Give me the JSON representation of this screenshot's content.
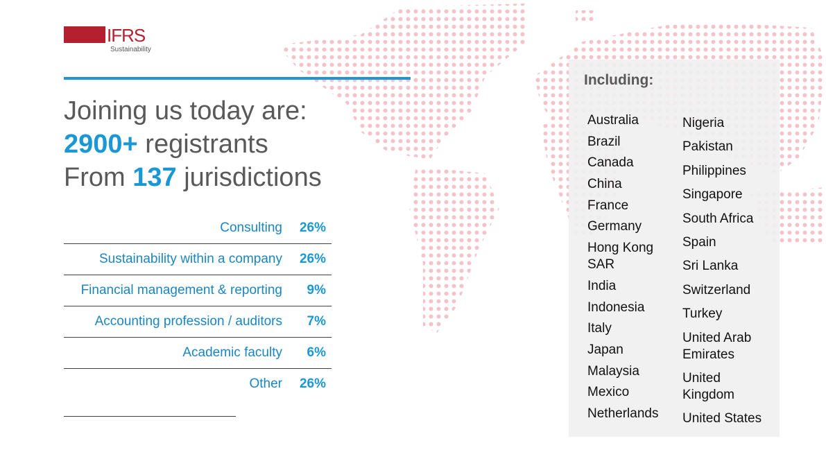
{
  "logo": {
    "mark": "IFRS",
    "subtitle": "Sustainability"
  },
  "heading": {
    "line1": "Joining us today are:",
    "line2": {
      "number": "2900+",
      "text": "registrants"
    },
    "line3": {
      "prefix": "From",
      "number": "137",
      "text": "jurisdictions"
    }
  },
  "table": {
    "rows": [
      [
        "Consulting",
        "26%"
      ],
      [
        "Sustainability within a company",
        "26%"
      ],
      [
        "Financial management & reporting",
        "9%"
      ],
      [
        "Accounting profession / auditors",
        "7%"
      ],
      [
        "Academic faculty",
        "6%"
      ],
      [
        "Other",
        "26%"
      ]
    ]
  },
  "including": {
    "title": "Including:",
    "columns": [
      [
        "Australia",
        "Brazil",
        "Canada",
        "China",
        "France",
        "Germany",
        "Hong Kong SAR",
        "India",
        "Indonesia",
        "Italy",
        "Japan",
        "Malaysia",
        "Mexico",
        "Netherlands"
      ],
      [
        "Nigeria",
        "Pakistan",
        "Philippines",
        "Singapore",
        "South Africa",
        "Spain",
        "Sri Lanka",
        "Switzerland",
        "Turkey",
        "United Arab Emirates",
        "United Kingdom",
        "United States"
      ]
    ]
  }
}
